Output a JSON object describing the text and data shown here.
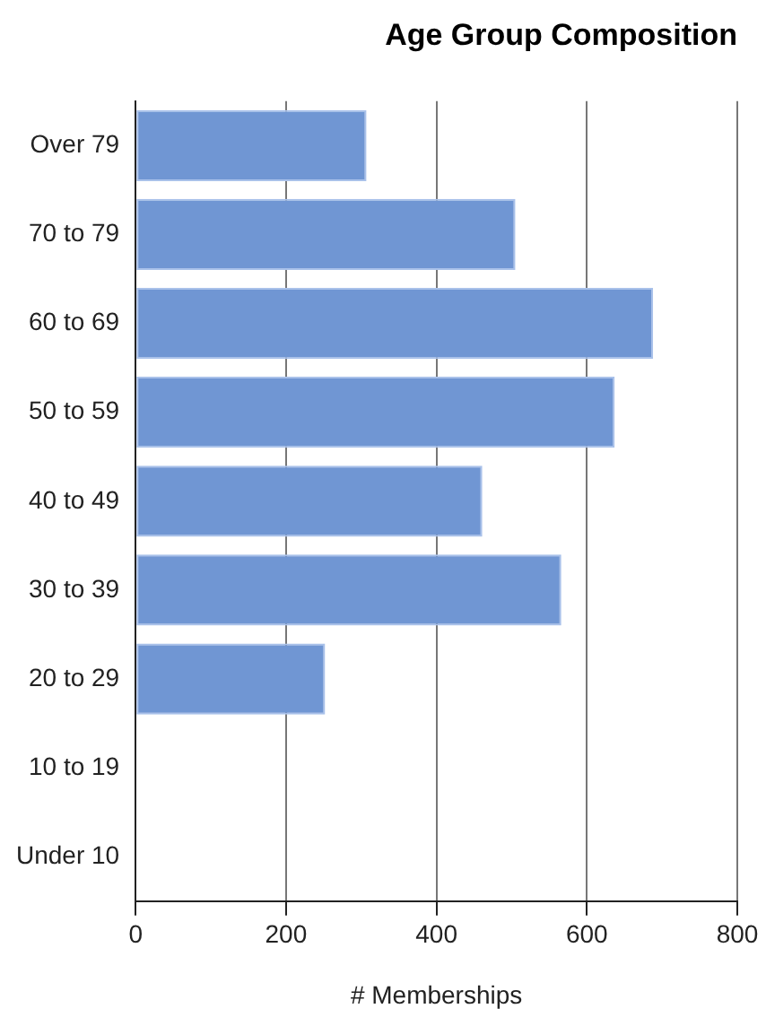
{
  "chart_data": {
    "type": "bar",
    "orientation": "horizontal",
    "title": "Age Group Composition",
    "xlabel": "# Memberships",
    "categories": [
      "Over 79",
      "70 to 79",
      "60 to 69",
      "50 to 59",
      "40 to 49",
      "30 to 39",
      "20 to 29",
      "10 to 19",
      "Under 10"
    ],
    "values": [
      307,
      505,
      688,
      637,
      461,
      566,
      252,
      0,
      0
    ],
    "color": "#7096d3",
    "xlim": [
      0,
      800
    ],
    "xticks": [
      0,
      200,
      400,
      600,
      800
    ],
    "grid": "x",
    "legend": false
  }
}
